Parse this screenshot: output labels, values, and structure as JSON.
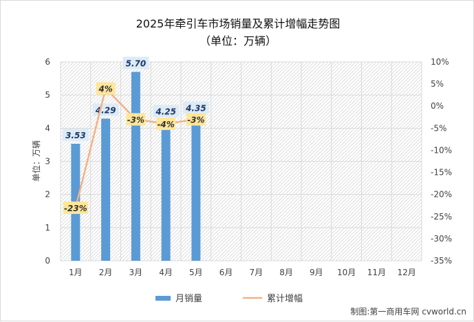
{
  "chart_data": {
    "type": "bar+line",
    "title": "2025年牵引车市场销量及累计增幅走势图",
    "subtitle": "（单位：万辆）",
    "categories": [
      "1月",
      "2月",
      "3月",
      "4月",
      "5月",
      "6月",
      "7月",
      "8月",
      "9月",
      "10月",
      "11月",
      "12月"
    ],
    "series": [
      {
        "name": "月销量",
        "type": "bar",
        "axis": "left",
        "color": "#5b9bd5",
        "values": [
          3.53,
          4.29,
          5.7,
          4.25,
          4.35,
          null,
          null,
          null,
          null,
          null,
          null,
          null
        ],
        "labels": [
          "3.53",
          "4.29",
          "5.70",
          "4.25",
          "4.35"
        ]
      },
      {
        "name": "累计增幅",
        "type": "line",
        "axis": "right",
        "color": "#f4b183",
        "values": [
          -23,
          4,
          -3,
          -4,
          -3,
          null,
          null,
          null,
          null,
          null,
          null,
          null
        ],
        "labels": [
          "-23%",
          "4%",
          "-3%",
          "-4%",
          "-3%"
        ]
      }
    ],
    "ylabel": "单位：万辆",
    "ylim": [
      0,
      6
    ],
    "yticks": [
      "0",
      "1",
      "2",
      "3",
      "4",
      "5",
      "6"
    ],
    "ylim_right": [
      -35,
      10
    ],
    "yticks_right": [
      "10%",
      "5%",
      "0%",
      "-5%",
      "-10%",
      "-15%",
      "-20%",
      "-25%",
      "-30%",
      "-35%"
    ],
    "legend_position": "bottom"
  },
  "credit": "制图:第一商用车网 cvworld.cn"
}
